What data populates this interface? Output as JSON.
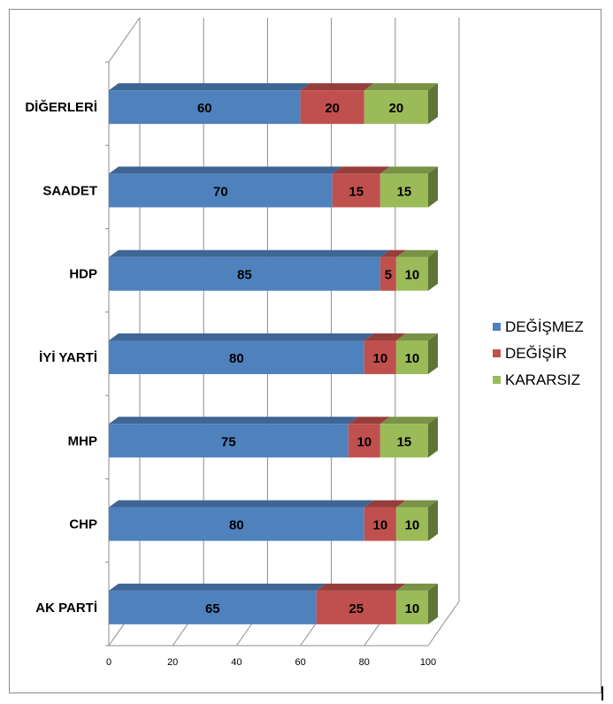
{
  "chart_data": {
    "type": "bar",
    "orientation": "horizontal",
    "stacked": true,
    "three_d": true,
    "categories": [
      "AK PARTİ",
      "CHP",
      "MHP",
      "İYİ YARTİ",
      "HDP",
      "SAADET",
      "DİĞERLERİ"
    ],
    "series": [
      {
        "name": "DEĞİŞMEZ",
        "color": "#4f81bd",
        "values": [
          65,
          80,
          75,
          80,
          85,
          70,
          60
        ]
      },
      {
        "name": "DEĞİŞİR",
        "color": "#c0504d",
        "values": [
          25,
          10,
          10,
          10,
          5,
          15,
          20
        ]
      },
      {
        "name": "KARARSIZ",
        "color": "#9bbb59",
        "values": [
          10,
          10,
          15,
          10,
          10,
          15,
          20
        ]
      }
    ],
    "xlim": [
      0,
      100
    ],
    "xticks": [
      0,
      20,
      40,
      60,
      80,
      100
    ],
    "grid": true,
    "legend": "right"
  }
}
